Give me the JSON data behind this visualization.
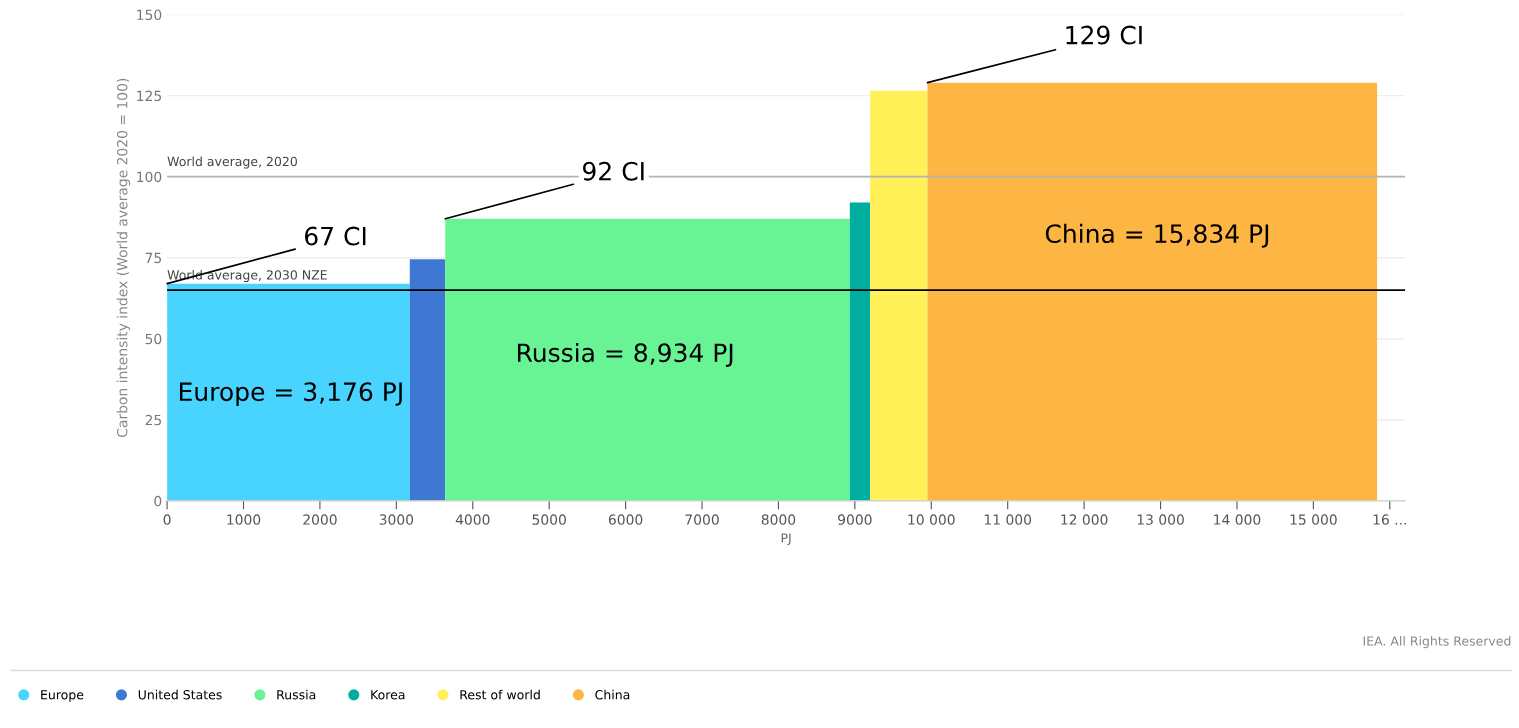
{
  "chart_data": {
    "type": "histogram",
    "bins": [
      0,
      3176,
      3640,
      8934,
      9200,
      9950,
      15834
    ],
    "series": [
      {
        "name": "Europe",
        "color": "#48d4ff",
        "values": [
          67,
          null,
          null,
          null,
          null,
          null
        ]
      },
      {
        "name": "United States",
        "color": "#3f78d3",
        "values": [
          null,
          74.5,
          null,
          null,
          null,
          null
        ]
      },
      {
        "name": "Russia",
        "color": "#68f494",
        "values": [
          null,
          null,
          87,
          null,
          null,
          null
        ]
      },
      {
        "name": "Korea",
        "color": "#00ae9f",
        "values": [
          null,
          null,
          null,
          92,
          null,
          null
        ]
      },
      {
        "name": "Rest of world",
        "color": "#fff157",
        "values": [
          null,
          null,
          null,
          null,
          126.5,
          null
        ]
      },
      {
        "name": "China",
        "color": "#fdb543",
        "values": [
          null,
          null,
          null,
          null,
          null,
          129
        ]
      }
    ],
    "xlabel": "PJ",
    "ylabel": "Carbon intensity index (World average 2020 = 100)",
    "xlim": [
      0,
      16200
    ],
    "xticks": [
      0,
      1000,
      2000,
      3000,
      4000,
      5000,
      6000,
      7000,
      8000,
      9000,
      {
        "value": 10000,
        "label": "10 000"
      },
      {
        "value": 11000,
        "label": "11 000"
      },
      {
        "value": 12000,
        "label": "12 000"
      },
      {
        "value": 13000,
        "label": "13 000"
      },
      {
        "value": 14000,
        "label": "14 000"
      },
      {
        "value": 15000,
        "label": "15 000"
      },
      {
        "value": 16000,
        "label": "16 ..."
      }
    ],
    "ylim": [
      0,
      150
    ],
    "yticks": [
      0,
      25,
      50,
      75,
      100,
      125,
      150
    ],
    "grid": "y",
    "legend": "bottom left",
    "ref_lines": [
      {
        "axis": "y",
        "value": 100,
        "label": "World average, 2020",
        "color": "#b4b4b4"
      },
      {
        "axis": "y",
        "value": 65,
        "label": "World average, 2030 NZE",
        "color": "#000000"
      }
    ],
    "annotations": [
      {
        "text": "67 CI",
        "x": 0,
        "y": 67
      },
      {
        "text": "92 CI",
        "x": 3640,
        "y": 87
      },
      {
        "text": "129 CI",
        "x": 9950,
        "y": 129
      },
      "Europe = 3,176 PJ",
      "Russia = 8,934 PJ",
      "China = 15,834 PJ",
      "IEA. All Rights Reserved"
    ]
  }
}
